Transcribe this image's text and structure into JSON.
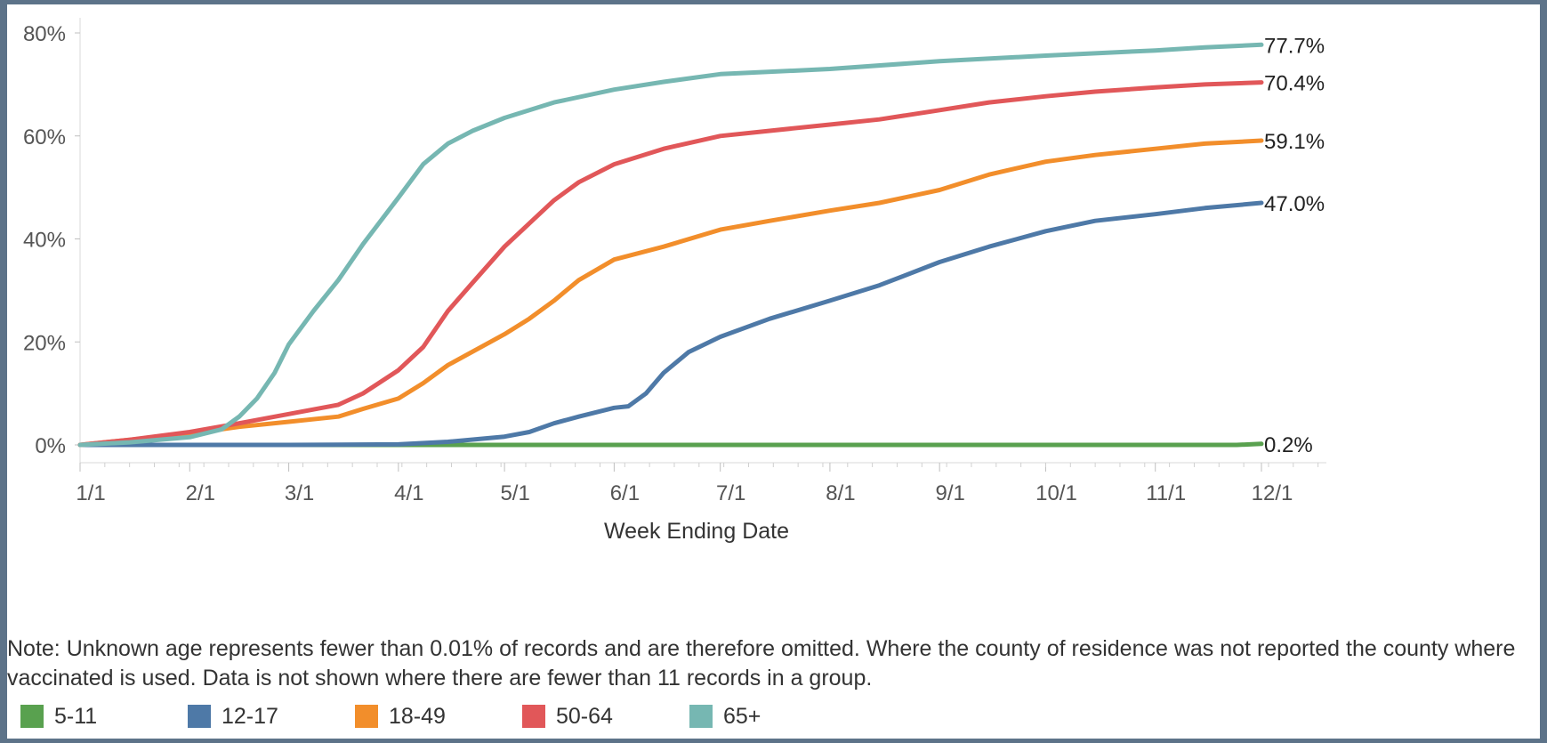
{
  "chart_data": {
    "type": "line",
    "xlabel": "Week Ending Date",
    "ylabel": "",
    "ylim": [
      0,
      0.8
    ],
    "xlim": [
      "2021-01-01",
      "2021-12-01"
    ],
    "x_ticks": [
      "1/1",
      "2/1",
      "3/1",
      "4/1",
      "5/1",
      "6/1",
      "7/1",
      "8/1",
      "9/1",
      "10/1",
      "11/1",
      "12/1"
    ],
    "y_ticks": [
      "0%",
      "20%",
      "40%",
      "60%",
      "80%"
    ],
    "grid": false,
    "legend_position": "bottom-left",
    "series": [
      {
        "name": "5-11",
        "color": "#59a14f",
        "end_label": "0.2%",
        "points": [
          [
            "2021-01-01",
            0
          ],
          [
            "2021-11-01",
            0
          ],
          [
            "2021-11-24",
            0
          ],
          [
            "2021-12-01",
            0.002
          ]
        ]
      },
      {
        "name": "12-17",
        "color": "#4e79a7",
        "end_label": "47.0%",
        "points": [
          [
            "2021-01-01",
            0
          ],
          [
            "2021-03-01",
            0
          ],
          [
            "2021-04-01",
            0.001
          ],
          [
            "2021-04-15",
            0.006
          ],
          [
            "2021-05-01",
            0.016
          ],
          [
            "2021-05-08",
            0.025
          ],
          [
            "2021-05-15",
            0.042
          ],
          [
            "2021-05-22",
            0.055
          ],
          [
            "2021-06-01",
            0.072
          ],
          [
            "2021-06-05",
            0.075
          ],
          [
            "2021-06-10",
            0.1
          ],
          [
            "2021-06-15",
            0.14
          ],
          [
            "2021-06-22",
            0.18
          ],
          [
            "2021-07-01",
            0.21
          ],
          [
            "2021-07-15",
            0.245
          ],
          [
            "2021-08-01",
            0.28
          ],
          [
            "2021-08-15",
            0.31
          ],
          [
            "2021-09-01",
            0.355
          ],
          [
            "2021-09-15",
            0.385
          ],
          [
            "2021-10-01",
            0.415
          ],
          [
            "2021-10-15",
            0.435
          ],
          [
            "2021-11-01",
            0.448
          ],
          [
            "2021-11-15",
            0.46
          ],
          [
            "2021-12-01",
            0.47
          ]
        ]
      },
      {
        "name": "18-49",
        "color": "#f28e2b",
        "end_label": "59.1%",
        "points": [
          [
            "2021-01-01",
            0
          ],
          [
            "2021-01-15",
            0.01
          ],
          [
            "2021-02-01",
            0.022
          ],
          [
            "2021-02-15",
            0.035
          ],
          [
            "2021-03-01",
            0.045
          ],
          [
            "2021-03-15",
            0.055
          ],
          [
            "2021-03-22",
            0.07
          ],
          [
            "2021-04-01",
            0.09
          ],
          [
            "2021-04-08",
            0.12
          ],
          [
            "2021-04-15",
            0.155
          ],
          [
            "2021-05-01",
            0.215
          ],
          [
            "2021-05-08",
            0.245
          ],
          [
            "2021-05-15",
            0.28
          ],
          [
            "2021-05-22",
            0.32
          ],
          [
            "2021-06-01",
            0.36
          ],
          [
            "2021-06-15",
            0.385
          ],
          [
            "2021-07-01",
            0.418
          ],
          [
            "2021-07-15",
            0.435
          ],
          [
            "2021-08-01",
            0.455
          ],
          [
            "2021-08-15",
            0.47
          ],
          [
            "2021-09-01",
            0.495
          ],
          [
            "2021-09-15",
            0.525
          ],
          [
            "2021-10-01",
            0.55
          ],
          [
            "2021-10-15",
            0.563
          ],
          [
            "2021-11-01",
            0.575
          ],
          [
            "2021-11-15",
            0.585
          ],
          [
            "2021-12-01",
            0.591
          ]
        ]
      },
      {
        "name": "50-64",
        "color": "#e15759",
        "end_label": "70.4%",
        "points": [
          [
            "2021-01-01",
            0
          ],
          [
            "2021-01-15",
            0.01
          ],
          [
            "2021-02-01",
            0.025
          ],
          [
            "2021-02-15",
            0.042
          ],
          [
            "2021-03-01",
            0.06
          ],
          [
            "2021-03-15",
            0.078
          ],
          [
            "2021-03-22",
            0.1
          ],
          [
            "2021-04-01",
            0.145
          ],
          [
            "2021-04-08",
            0.19
          ],
          [
            "2021-04-15",
            0.26
          ],
          [
            "2021-04-22",
            0.315
          ],
          [
            "2021-05-01",
            0.385
          ],
          [
            "2021-05-08",
            0.43
          ],
          [
            "2021-05-15",
            0.475
          ],
          [
            "2021-05-22",
            0.51
          ],
          [
            "2021-06-01",
            0.545
          ],
          [
            "2021-06-15",
            0.575
          ],
          [
            "2021-07-01",
            0.6
          ],
          [
            "2021-07-15",
            0.61
          ],
          [
            "2021-08-01",
            0.622
          ],
          [
            "2021-08-15",
            0.632
          ],
          [
            "2021-09-01",
            0.65
          ],
          [
            "2021-09-15",
            0.665
          ],
          [
            "2021-10-01",
            0.677
          ],
          [
            "2021-10-15",
            0.686
          ],
          [
            "2021-11-01",
            0.694
          ],
          [
            "2021-11-15",
            0.7
          ],
          [
            "2021-12-01",
            0.704
          ]
        ]
      },
      {
        "name": "65+",
        "color": "#76b7b2",
        "end_label": "77.7%",
        "points": [
          [
            "2021-01-01",
            0
          ],
          [
            "2021-01-15",
            0.005
          ],
          [
            "2021-02-01",
            0.015
          ],
          [
            "2021-02-10",
            0.03
          ],
          [
            "2021-02-15",
            0.055
          ],
          [
            "2021-02-20",
            0.09
          ],
          [
            "2021-02-25",
            0.14
          ],
          [
            "2021-03-01",
            0.195
          ],
          [
            "2021-03-08",
            0.26
          ],
          [
            "2021-03-15",
            0.32
          ],
          [
            "2021-03-22",
            0.39
          ],
          [
            "2021-04-01",
            0.48
          ],
          [
            "2021-04-08",
            0.545
          ],
          [
            "2021-04-15",
            0.585
          ],
          [
            "2021-04-22",
            0.61
          ],
          [
            "2021-05-01",
            0.635
          ],
          [
            "2021-05-15",
            0.665
          ],
          [
            "2021-06-01",
            0.69
          ],
          [
            "2021-06-15",
            0.705
          ],
          [
            "2021-07-01",
            0.72
          ],
          [
            "2021-08-01",
            0.73
          ],
          [
            "2021-09-01",
            0.745
          ],
          [
            "2021-10-01",
            0.756
          ],
          [
            "2021-11-01",
            0.766
          ],
          [
            "2021-11-15",
            0.772
          ],
          [
            "2021-12-01",
            0.777
          ]
        ]
      }
    ]
  },
  "note": "Note: Unknown age represents fewer than 0.01% of records and are therefore omitted. Where the county of residence was not reported the county where vaccinated is used. Data is not shown where there are fewer than 11 records in a group.",
  "legend": [
    {
      "label": "5-11",
      "color": "#59a14f"
    },
    {
      "label": "12-17",
      "color": "#4e79a7"
    },
    {
      "label": "18-49",
      "color": "#f28e2b"
    },
    {
      "label": "50-64",
      "color": "#e15759"
    },
    {
      "label": "65+",
      "color": "#76b7b2"
    }
  ]
}
